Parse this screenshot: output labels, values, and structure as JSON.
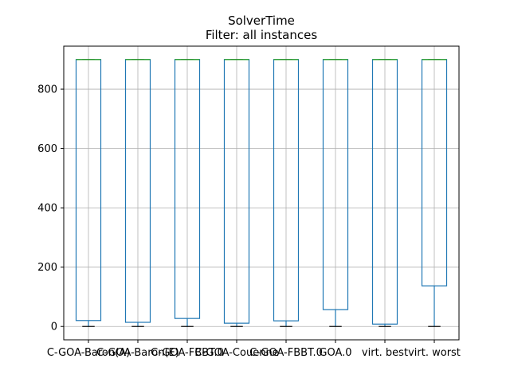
{
  "chart_data": {
    "type": "box",
    "title": "SolverTime",
    "subtitle": "Filter: all instances",
    "xlabel": "",
    "ylabel": "",
    "ylim": [
      -45,
      945
    ],
    "yticks": [
      0,
      200,
      400,
      600,
      800
    ],
    "grid": true,
    "series": [
      {
        "name": "C-GOA-Baron(A)",
        "min": 0,
        "q1": 20,
        "median": 900,
        "q3": 900,
        "max": 900
      },
      {
        "name": "C-GOA-Baron(E)",
        "min": 0,
        "q1": 14,
        "median": 900,
        "q3": 900,
        "max": 900
      },
      {
        "name": "C-GOA-FBBT.0",
        "min": 0,
        "q1": 27,
        "median": 900,
        "q3": 900,
        "max": 900
      },
      {
        "name": "C-GOA-Couenne",
        "min": 0,
        "q1": 11,
        "median": 900,
        "q3": 900,
        "max": 900
      },
      {
        "name": "C-GOA-FBBT.0",
        "min": 0,
        "q1": 19,
        "median": 900,
        "q3": 900,
        "max": 900
      },
      {
        "name": "GOA.0",
        "min": 0,
        "q1": 57,
        "median": 900,
        "q3": 900,
        "max": 900
      },
      {
        "name": "virt. best",
        "min": 0,
        "q1": 8,
        "median": 900,
        "q3": 900,
        "max": 900
      },
      {
        "name": "virt. worst",
        "min": 0,
        "q1": 137,
        "median": 900,
        "q3": 900,
        "max": 900
      }
    ],
    "colors": {
      "box": "#1f77b4",
      "median": "#2ca02c",
      "grid": "#b0b0b0",
      "whisker_cap": "#000000"
    }
  }
}
